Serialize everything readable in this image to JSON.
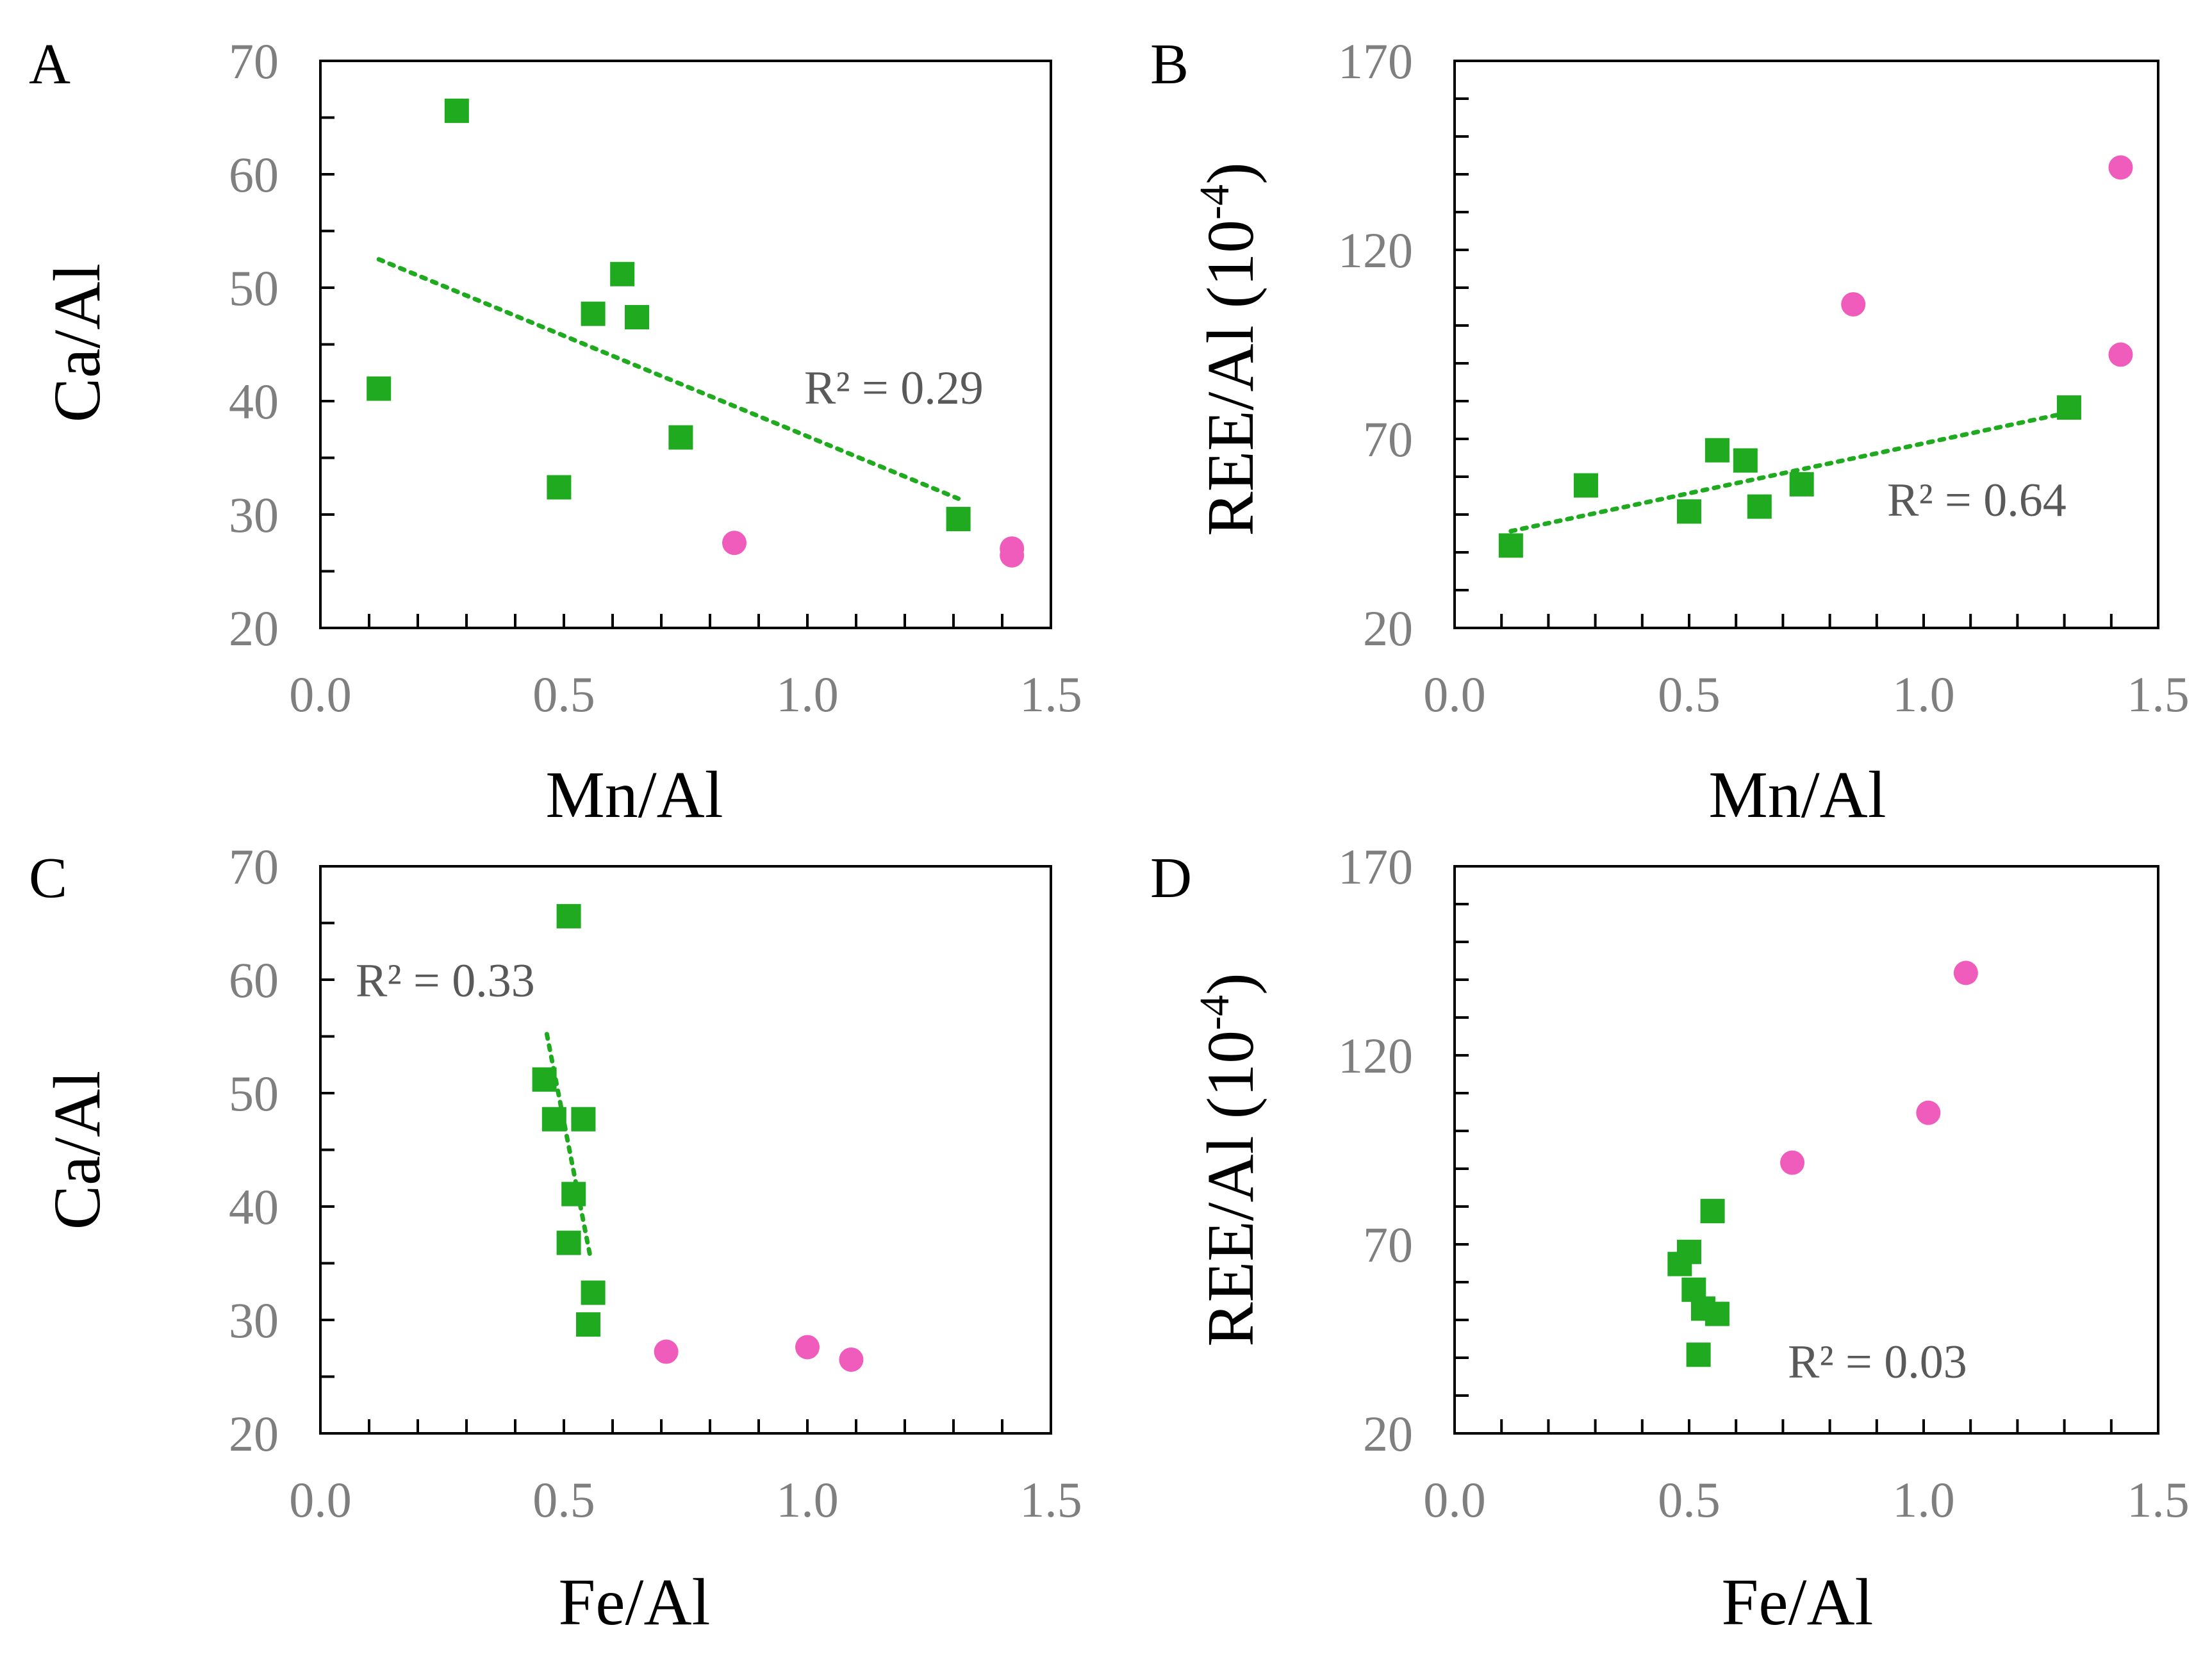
{
  "colors": {
    "green": "#1faa1f",
    "pink": "#f05cbc",
    "trend": "#1faa1f"
  },
  "chart_data": [
    {
      "type": "scatter",
      "panel": "A",
      "xlabel": "Mn/Al",
      "ylabel": "Ca/Al",
      "xlim": [
        0.0,
        1.5
      ],
      "ylim": [
        20,
        70
      ],
      "xticks": [
        "0.0",
        "0.5",
        "1.0",
        "1.5"
      ],
      "yticks": [
        "20",
        "30",
        "40",
        "50",
        "60",
        "70"
      ],
      "xtick_values": [
        0.0,
        0.5,
        1.0,
        1.5
      ],
      "ytick_values": [
        20,
        30,
        40,
        50,
        60,
        70
      ],
      "x_minor_step": 0.1,
      "y_minor_step": 5,
      "series": [
        {
          "name": "squares",
          "marker": "square",
          "color": "#1faa1f",
          "points": [
            [
              0.28,
              65.6
            ],
            [
              0.12,
              41.1
            ],
            [
              0.56,
              47.7
            ],
            [
              0.62,
              51.2
            ],
            [
              0.65,
              47.4
            ],
            [
              0.74,
              36.8
            ],
            [
              0.49,
              32.4
            ],
            [
              1.31,
              29.6
            ]
          ]
        },
        {
          "name": "circles",
          "marker": "circle",
          "color": "#f05cbc",
          "points": [
            [
              0.85,
              27.5
            ],
            [
              1.42,
              27.0
            ],
            [
              1.42,
              26.4
            ]
          ]
        }
      ],
      "trendline": {
        "x": [
          0.12,
          1.31
        ],
        "y": [
          52.5,
          31.4
        ]
      },
      "annotation": "R² = 0.29"
    },
    {
      "type": "scatter",
      "panel": "B",
      "xlabel": "Mn/Al",
      "ylabel": "REE/Al (10",
      "ylabel_sup": "-4",
      "ylabel_close": ")",
      "xlim": [
        0.0,
        1.5
      ],
      "ylim": [
        20,
        170
      ],
      "xticks": [
        "0.0",
        "0.5",
        "1.0",
        "1.5"
      ],
      "yticks": [
        "20",
        "70",
        "120",
        "170"
      ],
      "xtick_values": [
        0.0,
        0.5,
        1.0,
        1.5
      ],
      "ytick_values": [
        20,
        70,
        120,
        170
      ],
      "x_minor_step": 0.1,
      "y_minor_step": 10,
      "series": [
        {
          "name": "squares",
          "marker": "square",
          "color": "#1faa1f",
          "points": [
            [
              0.12,
              41.8
            ],
            [
              0.28,
              57.7
            ],
            [
              0.5,
              50.8
            ],
            [
              0.56,
              67.0
            ],
            [
              0.62,
              64.3
            ],
            [
              0.65,
              52.1
            ],
            [
              0.74,
              58.0
            ],
            [
              1.31,
              78.3
            ]
          ]
        },
        {
          "name": "circles",
          "marker": "circle",
          "color": "#f05cbc",
          "points": [
            [
              0.85,
              105.6
            ],
            [
              1.42,
              141.8
            ],
            [
              1.42,
              92.3
            ]
          ]
        }
      ],
      "trendline": {
        "x": [
          0.12,
          1.31
        ],
        "y": [
          45.6,
          77.0
        ]
      },
      "annotation": "R² = 0.64"
    },
    {
      "type": "scatter",
      "panel": "C",
      "xlabel": "Fe/Al",
      "ylabel": "Ca/Al",
      "xlim": [
        0.0,
        1.5
      ],
      "ylim": [
        20,
        70
      ],
      "xticks": [
        "0.0",
        "0.5",
        "1.0",
        "1.5"
      ],
      "yticks": [
        "20",
        "30",
        "40",
        "50",
        "60",
        "70"
      ],
      "xtick_values": [
        0.0,
        0.5,
        1.0,
        1.5
      ],
      "ytick_values": [
        20,
        30,
        40,
        50,
        60,
        70
      ],
      "x_minor_step": 0.1,
      "y_minor_step": 5,
      "series": [
        {
          "name": "squares",
          "marker": "square",
          "color": "#1faa1f",
          "points": [
            [
              0.51,
              65.6
            ],
            [
              0.46,
              51.2
            ],
            [
              0.48,
              47.7
            ],
            [
              0.54,
              47.7
            ],
            [
              0.52,
              41.1
            ],
            [
              0.51,
              36.8
            ],
            [
              0.56,
              32.4
            ],
            [
              0.55,
              29.6
            ]
          ]
        },
        {
          "name": "circles",
          "marker": "circle",
          "color": "#f05cbc",
          "points": [
            [
              0.71,
              27.2
            ],
            [
              1.0,
              27.6
            ],
            [
              1.09,
              26.5
            ]
          ]
        }
      ],
      "trendline": {
        "x": [
          0.465,
          0.555
        ],
        "y": [
          55.2,
          35.4
        ]
      },
      "annotation": "R² = 0.33"
    },
    {
      "type": "scatter",
      "panel": "D",
      "xlabel": "Fe/Al",
      "ylabel": "REE/Al (10",
      "ylabel_sup": "-4",
      "ylabel_close": ")",
      "xlim": [
        0.0,
        1.5
      ],
      "ylim": [
        20,
        170
      ],
      "xticks": [
        "0.0",
        "0.5",
        "1.0",
        "1.5"
      ],
      "yticks": [
        "20",
        "70",
        "120",
        "170"
      ],
      "xtick_values": [
        0.0,
        0.5,
        1.0,
        1.5
      ],
      "ytick_values": [
        20,
        70,
        120,
        170
      ],
      "x_minor_step": 0.1,
      "y_minor_step": 10,
      "series": [
        {
          "name": "squares",
          "marker": "square",
          "color": "#1faa1f",
          "points": [
            [
              0.48,
              64.8
            ],
            [
              0.5,
              68.0
            ],
            [
              0.51,
              58.0
            ],
            [
              0.53,
              53.0
            ],
            [
              0.56,
              51.6
            ],
            [
              0.52,
              40.8
            ],
            [
              0.55,
              78.8
            ]
          ]
        },
        {
          "name": "circles",
          "marker": "circle",
          "color": "#f05cbc",
          "points": [
            [
              0.72,
              91.6
            ],
            [
              1.01,
              104.8
            ],
            [
              1.09,
              141.8
            ]
          ]
        }
      ],
      "annotation": "R² = 0.03"
    }
  ]
}
